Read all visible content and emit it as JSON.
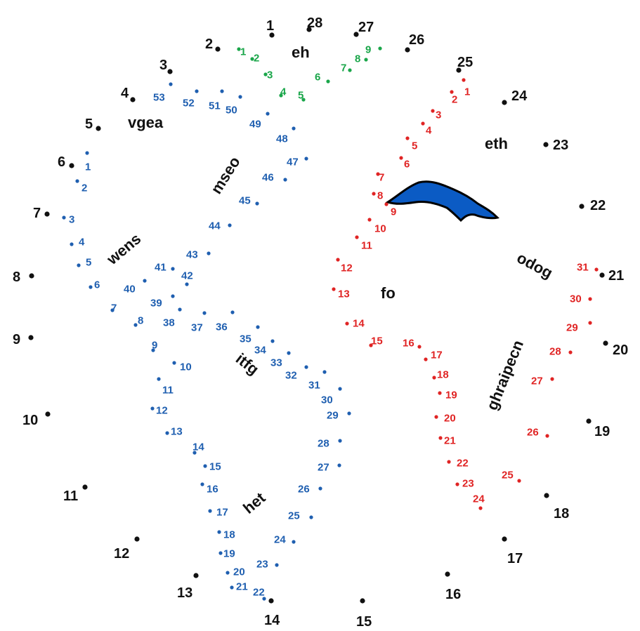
{
  "colors": {
    "black": "#111111",
    "blue": "#1f5fb0",
    "red": "#e02424",
    "green": "#1aa64a",
    "lake_fill": "#0b5bc4"
  },
  "words": {
    "eh": "eh",
    "vgea": "vgea",
    "mseo": "mseo",
    "wens": "wens",
    "eth": "eth",
    "odog": "odog",
    "fo": "fo",
    "itfg": "itfg",
    "ghraipecn": "ghraipecn",
    "het": "het"
  },
  "dot_sets": {
    "black": {
      "color": "black",
      "count": 28
    },
    "blue": {
      "color": "blue",
      "count": 53
    },
    "red": {
      "color": "red",
      "count": 31
    },
    "green": {
      "color": "green",
      "count": 9
    }
  },
  "icons": {
    "lake": "lake-shape"
  }
}
